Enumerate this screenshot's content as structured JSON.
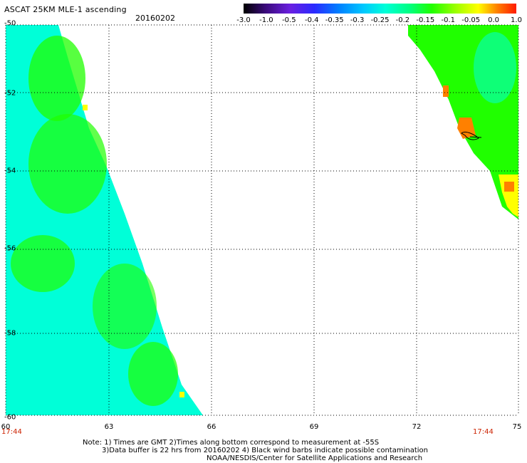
{
  "header": {
    "title": "ASCAT 25KM MLE-1 ascending",
    "date": "20160202"
  },
  "colorbar": {
    "labels": [
      "-3.0",
      "-1.0",
      "-0.5",
      "-0.4",
      "-0.35",
      "-0.3",
      "-0.25",
      "-0.2",
      "-0.15",
      "-0.1",
      "-0.05",
      "0.0",
      "1.0"
    ],
    "colors": [
      "#000000",
      "#3a0a7a",
      "#6a1fe0",
      "#2a2aff",
      "#0080ff",
      "#00c8ff",
      "#00ffd8",
      "#00ff80",
      "#20ff00",
      "#9fff00",
      "#ffff00",
      "#ff8000",
      "#ff1a00"
    ]
  },
  "map": {
    "lat_labels": [
      "-50",
      "-52",
      "-54",
      "-56",
      "-58",
      "-60"
    ],
    "lon_labels": [
      "60",
      "63",
      "66",
      "69",
      "72",
      "75"
    ],
    "time_left": "17:44",
    "time_right": "17:44",
    "feature_colors": {
      "cyan": "#00ffd8",
      "green": "#20ff00",
      "yellow": "#ffff00",
      "orange": "#ff8000",
      "red": "#ff1a00"
    }
  },
  "notes": {
    "line1": "Note: 1) Times are GMT 2)Times along bottom correspond to measurement at -55S",
    "line2": "3)Data buffer is 22 hrs from 20160202 4) Black wind barbs indicate possible contamination",
    "line3": "NOAA/NESDIS/Center for Satellite Applications and Research"
  }
}
